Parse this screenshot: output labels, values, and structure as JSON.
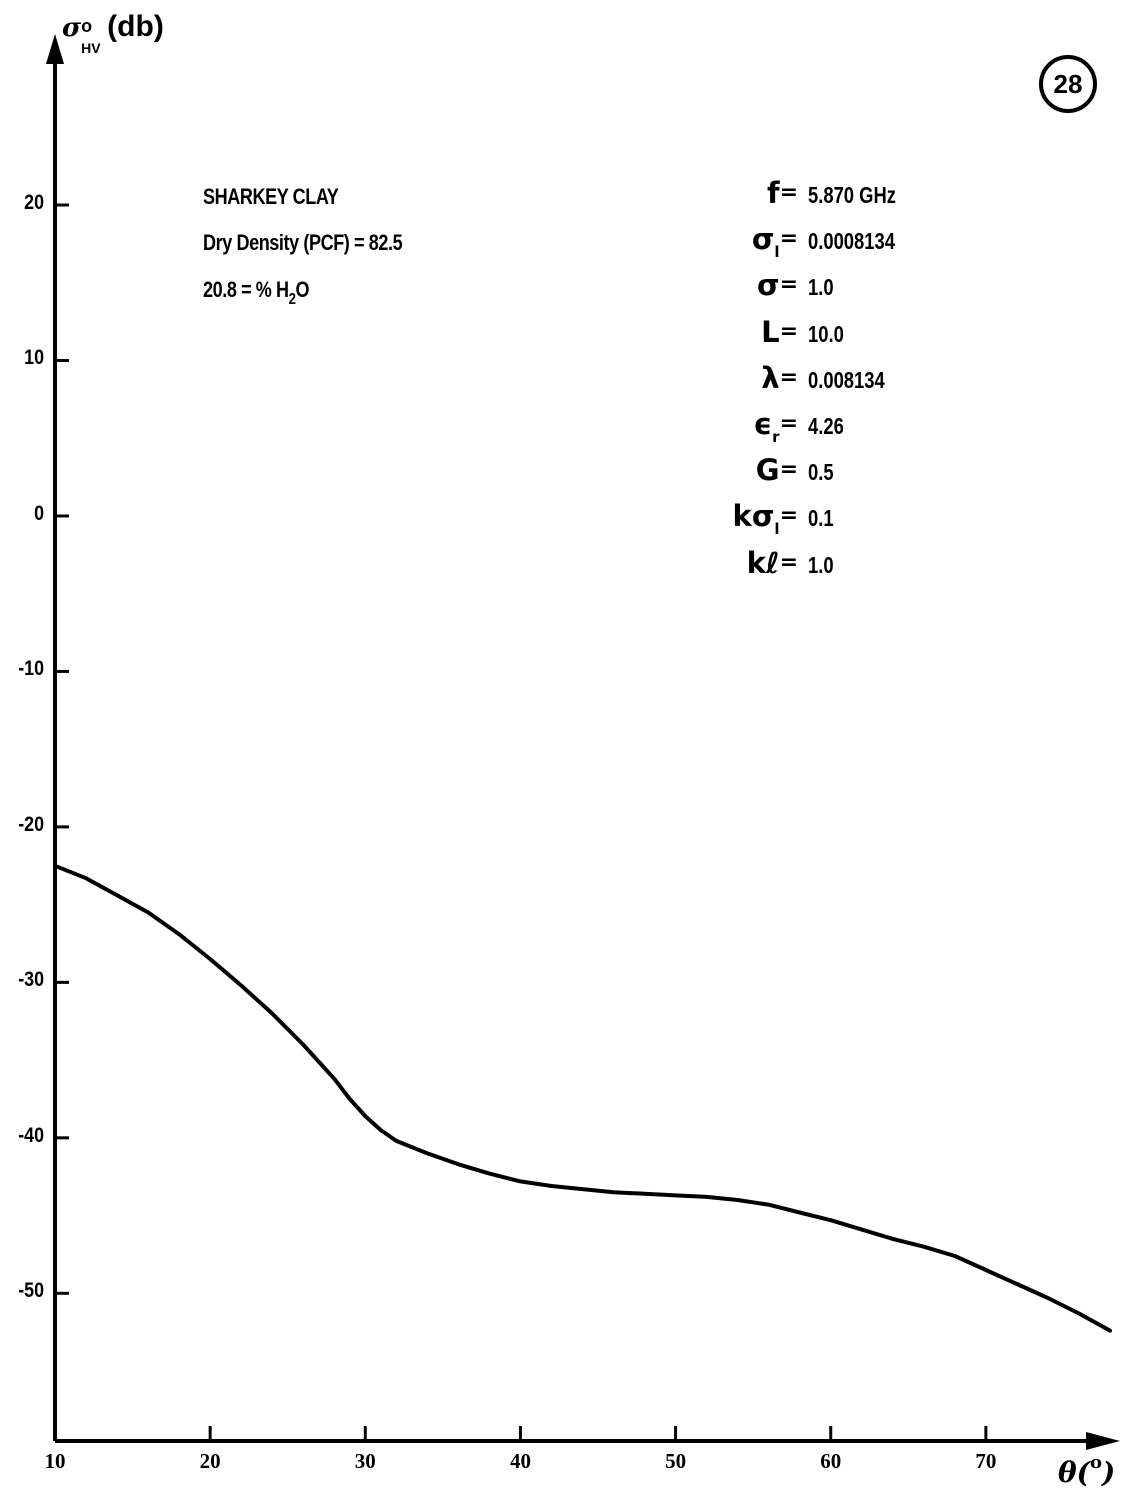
{
  "page_badge": "28",
  "annotation": {
    "material": "SHARKEY CLAY",
    "dry_density": "Dry Density (PCF) = 82.5",
    "moisture": "20.8 = % H",
    "moisture_sub": "2",
    "moisture_tail": "O"
  },
  "parameters": [
    {
      "symbol": "f",
      "sub": "",
      "value": "5.870 GHz"
    },
    {
      "symbol": "σ",
      "sub": "l",
      "value": "0.0008134"
    },
    {
      "symbol": "σ",
      "sub": "",
      "value": "1.0"
    },
    {
      "symbol": "L",
      "sub": "",
      "value": "10.0"
    },
    {
      "symbol": "λ",
      "sub": "",
      "value": "0.008134"
    },
    {
      "symbol": "ϵ",
      "sub": "r",
      "value": "4.26"
    },
    {
      "symbol": "G",
      "sub": "",
      "value": "0.5"
    },
    {
      "symbol": "kσ",
      "sub": "l",
      "value": "0.1"
    },
    {
      "symbol": "kℓ",
      "sub": "",
      "value": "1.0"
    }
  ],
  "chart_data": {
    "type": "line",
    "ylabel": "σ°HV(db)",
    "ylabel_parts": {
      "main": "σ",
      "sup": "o",
      "sub": "HV",
      "unit": "(db)"
    },
    "xlabel": "θ(°)",
    "xlabel_parts": {
      "main": "θ(",
      "sup": "o",
      "tail": ")"
    },
    "xlim": [
      10,
      78
    ],
    "ylim": [
      -59.5,
      31
    ],
    "x_ticks": [
      10,
      20,
      30,
      40,
      50,
      60,
      70
    ],
    "y_ticks": [
      20,
      10,
      0,
      -10,
      -20,
      -30,
      -40,
      -50
    ],
    "y_tick_labels": [
      "20",
      "10",
      "0",
      "-10",
      "-20",
      "-30",
      "-40",
      "-50"
    ],
    "grid": false,
    "series": [
      {
        "x": [
          10,
          12,
          14,
          16,
          18,
          20,
          22,
          24,
          26,
          28,
          29,
          30,
          31,
          32,
          34,
          36,
          38,
          40,
          42,
          44,
          46,
          48,
          50,
          52,
          54,
          56,
          58,
          60,
          62,
          64,
          66,
          68,
          70,
          72,
          74,
          76,
          78
        ],
        "y": [
          -22.5,
          -23.3,
          -24.4,
          -25.5,
          -26.9,
          -28.5,
          -30.2,
          -32.0,
          -34.0,
          -36.2,
          -37.5,
          -38.6,
          -39.5,
          -40.2,
          -41.0,
          -41.7,
          -42.3,
          -42.8,
          -43.1,
          -43.3,
          -43.5,
          -43.6,
          -43.7,
          -43.8,
          -44.0,
          -44.3,
          -44.8,
          -45.3,
          -45.9,
          -46.5,
          -47.0,
          -47.6,
          -48.5,
          -49.4,
          -50.3,
          -51.3,
          -52.4
        ]
      }
    ]
  }
}
